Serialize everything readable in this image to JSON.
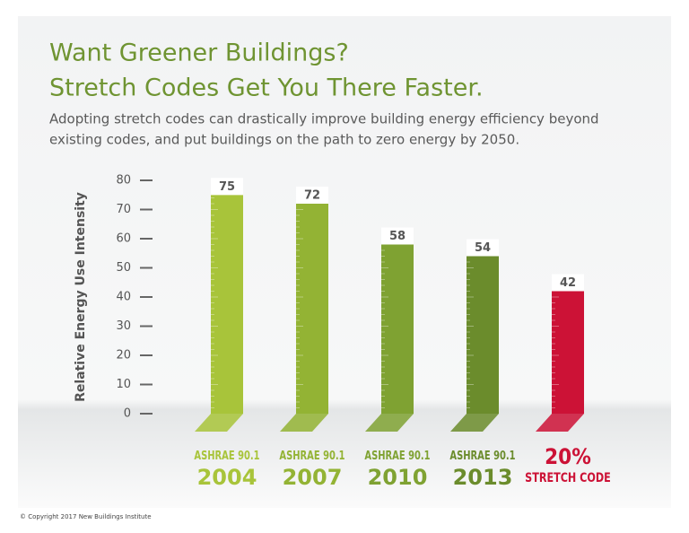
{
  "chart_data": {
    "type": "bar",
    "title": [
      "Want Greener Buildings?",
      "Stretch Codes Get You There Faster."
    ],
    "subtitle": [
      "Adopting stretch codes can drastically improve building energy efficiency beyond",
      "existing codes, and put buildings on the path to zero energy by 2050."
    ],
    "y_label": "Relative Energy Use Intensity",
    "categories": [
      [
        "ASHRAE 90.1",
        "2004"
      ],
      [
        "ASHRAE 90.1",
        "2007"
      ],
      [
        "ASHRAE 90.1",
        "2010"
      ],
      [
        "ASHRAE 90.1",
        "2013"
      ],
      [
        "20%",
        "STRETCH CODE"
      ]
    ],
    "values": [
      75,
      72,
      58,
      54,
      42
    ],
    "colors": [
      "#a8c43a",
      "#93b334",
      "#7fa232",
      "#6b8c2c",
      "#cc1236"
    ],
    "ylim": [
      0,
      80
    ],
    "yticks": [
      0,
      10,
      20,
      30,
      40,
      50,
      60,
      70,
      80
    ],
    "copyright": "© Copyright 2017 New Buildings Institute"
  }
}
